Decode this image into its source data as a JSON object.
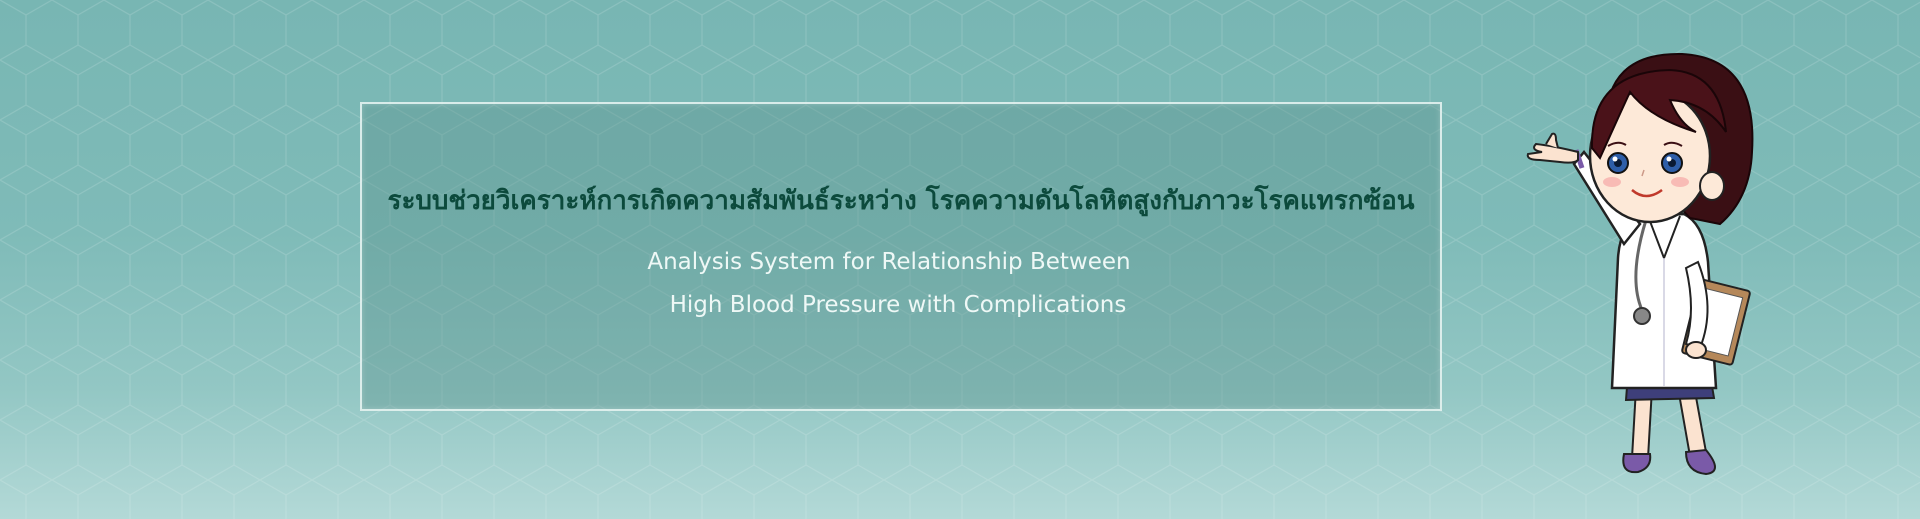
{
  "banner": {
    "title_th": "ระบบช่วยวิเคราะห์การเกิดความสัมพันธ์ระหว่าง โรคความดันโลหิตสูงกับภาวะโรคแทรกซ้อน",
    "title_en_line1": "Analysis System for Relationship Between",
    "title_en_line2": "High Blood Pressure with Complications"
  },
  "colors": {
    "background": "#7fbbb8",
    "title_th": "#0c4a3c",
    "title_en": "#eef8f6"
  },
  "illustration": {
    "icon": "doctor-mascot-icon"
  }
}
